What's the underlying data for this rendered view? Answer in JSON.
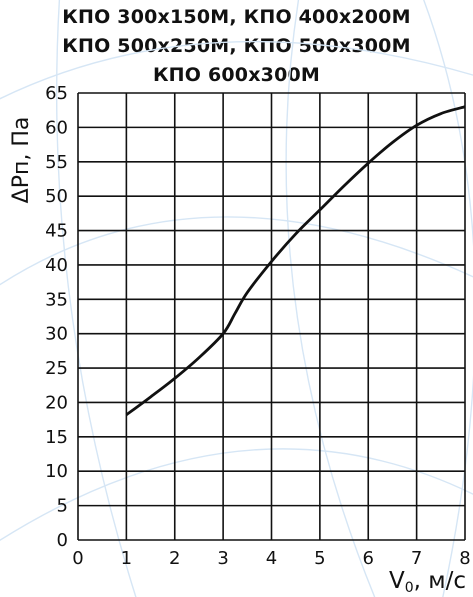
{
  "chart_data": {
    "type": "line",
    "title_lines": [
      "КПО 300x150М, КПО 400x200М",
      "КПО 500x250М, КПО 500x300М",
      "КПО 600x300М"
    ],
    "xlabel": "V",
    "xlabel_sub": "0",
    "xlabel_unit": ", м/с",
    "ylabel": "ΔPп, Па",
    "xlim": [
      0,
      8
    ],
    "ylim": [
      0,
      65
    ],
    "x_ticks": [
      0,
      1,
      2,
      3,
      4,
      5,
      6,
      7,
      8
    ],
    "y_ticks": [
      0,
      5,
      10,
      15,
      20,
      25,
      30,
      35,
      40,
      45,
      50,
      55,
      60,
      65
    ],
    "grid": true,
    "series": [
      {
        "x": [
          1.0,
          1.5,
          2.0,
          2.5,
          3.0,
          3.25,
          3.5,
          4.0,
          4.5,
          5.0,
          5.5,
          6.0,
          6.5,
          7.0,
          7.5,
          8.0
        ],
        "y": [
          18.2,
          20.8,
          23.5,
          26.5,
          30.0,
          33.0,
          36.0,
          40.5,
          44.5,
          48.0,
          51.5,
          54.8,
          57.8,
          60.3,
          62.0,
          63.0
        ]
      }
    ],
    "line_color": "#111111",
    "background_pattern_color": "#d6e6f5"
  }
}
